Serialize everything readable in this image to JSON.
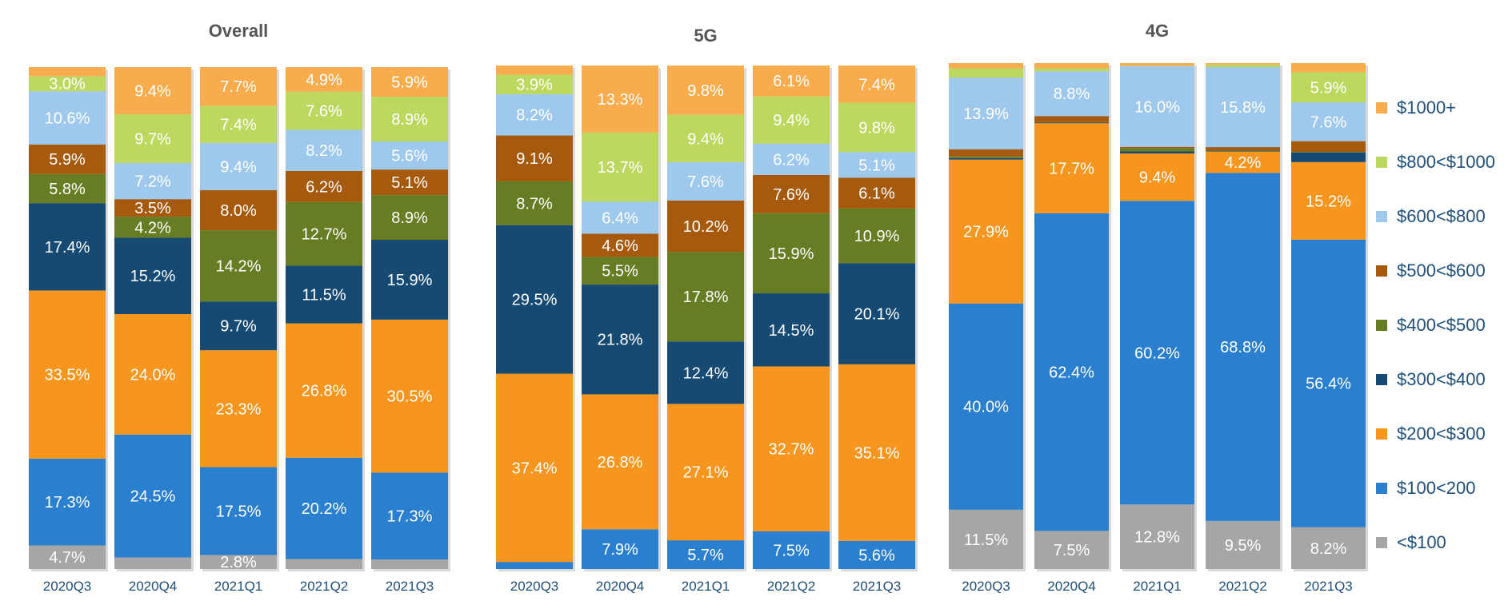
{
  "chart_data": [
    {
      "type": "bar",
      "stacked": true,
      "title": "Overall",
      "categories": [
        "2020Q3",
        "2020Q4",
        "2021Q1",
        "2021Q2",
        "2021Q3"
      ],
      "ylim": [
        0,
        100
      ],
      "series": [
        {
          "name": "<$100",
          "values": [
            4.7,
            2.3,
            2.8,
            2.0,
            1.9
          ]
        },
        {
          "name": "$100<200",
          "values": [
            17.3,
            24.5,
            17.5,
            20.2,
            17.3
          ]
        },
        {
          "name": "$200<$300",
          "values": [
            33.5,
            24.0,
            23.3,
            26.8,
            30.5
          ]
        },
        {
          "name": "$300<$400",
          "values": [
            17.4,
            15.2,
            9.7,
            11.5,
            15.9
          ]
        },
        {
          "name": "$400<$500",
          "values": [
            5.8,
            4.2,
            14.2,
            12.7,
            8.9
          ]
        },
        {
          "name": "$500<$600",
          "values": [
            5.9,
            3.5,
            8.0,
            6.2,
            5.1
          ]
        },
        {
          "name": "$600<$800",
          "values": [
            10.6,
            7.2,
            9.4,
            8.2,
            5.6
          ]
        },
        {
          "name": "$800<$1000",
          "values": [
            3.0,
            9.7,
            7.4,
            7.6,
            8.9
          ]
        },
        {
          "name": "$1000+",
          "values": [
            1.8,
            9.4,
            7.7,
            4.9,
            5.9
          ]
        }
      ]
    },
    {
      "type": "bar",
      "stacked": true,
      "title": "5G",
      "categories": [
        "2020Q3",
        "2020Q4",
        "2021Q1",
        "2021Q2",
        "2021Q3"
      ],
      "ylim": [
        0,
        100
      ],
      "series": [
        {
          "name": "<$100",
          "values": [
            0,
            0,
            0,
            0,
            0
          ]
        },
        {
          "name": "$100<200",
          "values": [
            1.4,
            7.9,
            5.7,
            7.5,
            5.6
          ]
        },
        {
          "name": "$200<$300",
          "values": [
            37.4,
            26.8,
            27.1,
            32.7,
            35.1
          ]
        },
        {
          "name": "$300<$400",
          "values": [
            29.5,
            21.8,
            12.4,
            14.5,
            20.1
          ]
        },
        {
          "name": "$400<$500",
          "values": [
            8.7,
            5.5,
            17.8,
            15.9,
            10.9
          ]
        },
        {
          "name": "$500<$600",
          "values": [
            9.1,
            4.6,
            10.2,
            7.6,
            6.1
          ]
        },
        {
          "name": "$600<$800",
          "values": [
            8.2,
            6.4,
            7.6,
            6.2,
            5.1
          ]
        },
        {
          "name": "$800<$1000",
          "values": [
            3.9,
            13.7,
            9.4,
            9.4,
            9.8
          ]
        },
        {
          "name": "$1000+",
          "values": [
            1.8,
            13.3,
            9.8,
            6.1,
            7.4
          ]
        }
      ]
    },
    {
      "type": "bar",
      "stacked": true,
      "title": "4G",
      "categories": [
        "2020Q3",
        "2020Q4",
        "2021Q1",
        "2021Q2",
        "2021Q3"
      ],
      "ylim": [
        0,
        100
      ],
      "series": [
        {
          "name": "<$100",
          "values": [
            11.5,
            7.5,
            12.8,
            9.5,
            8.2
          ]
        },
        {
          "name": "$100<200",
          "values": [
            40.0,
            62.4,
            60.2,
            68.8,
            56.4
          ]
        },
        {
          "name": "$200<$300",
          "values": [
            27.9,
            17.7,
            9.4,
            4.2,
            15.2
          ]
        },
        {
          "name": "$300<$400",
          "values": [
            0.3,
            0.1,
            0.4,
            0.1,
            1.9
          ]
        },
        {
          "name": "$400<$500",
          "values": [
            0.3,
            0.1,
            0.6,
            0.1,
            0.1
          ]
        },
        {
          "name": "$500<$600",
          "values": [
            1.4,
            1.2,
            0.3,
            0.7,
            2.1
          ]
        },
        {
          "name": "$600<$800",
          "values": [
            13.9,
            8.8,
            16.0,
            15.8,
            7.6
          ]
        },
        {
          "name": "$800<$1000",
          "values": [
            1.8,
            0.6,
            0.1,
            0.5,
            5.9
          ]
        },
        {
          "name": "$1000+",
          "values": [
            1.0,
            1.0,
            0.5,
            0.3,
            1.8
          ]
        }
      ]
    }
  ],
  "legend": [
    {
      "label": "$1000+",
      "color": "#f8ac4e"
    },
    {
      "label": "$800<$1000",
      "color": "#bcd85f"
    },
    {
      "label": "$600<$800",
      "color": "#9fc9ec"
    },
    {
      "label": "$500<$600",
      "color": "#a55a0e"
    },
    {
      "label": "$400<$500",
      "color": "#677d24"
    },
    {
      "label": "$300<$400",
      "color": "#164a73"
    },
    {
      "label": "$200<$300",
      "color": "#f7961f"
    },
    {
      "label": "$100<200",
      "color": "#2a7fce"
    },
    {
      "label": "<$100",
      "color": "#a6a6a6"
    }
  ],
  "series_colors": {
    "<$100": "#a6a6a6",
    "$100<200": "#2a7fce",
    "$200<$300": "#f7961f",
    "$300<$400": "#164a73",
    "$400<$500": "#677d24",
    "$500<$600": "#a55a0e",
    "$600<$800": "#9fc9ec",
    "$800<$1000": "#bcd85f",
    "$1000+": "#f8ac4e"
  }
}
